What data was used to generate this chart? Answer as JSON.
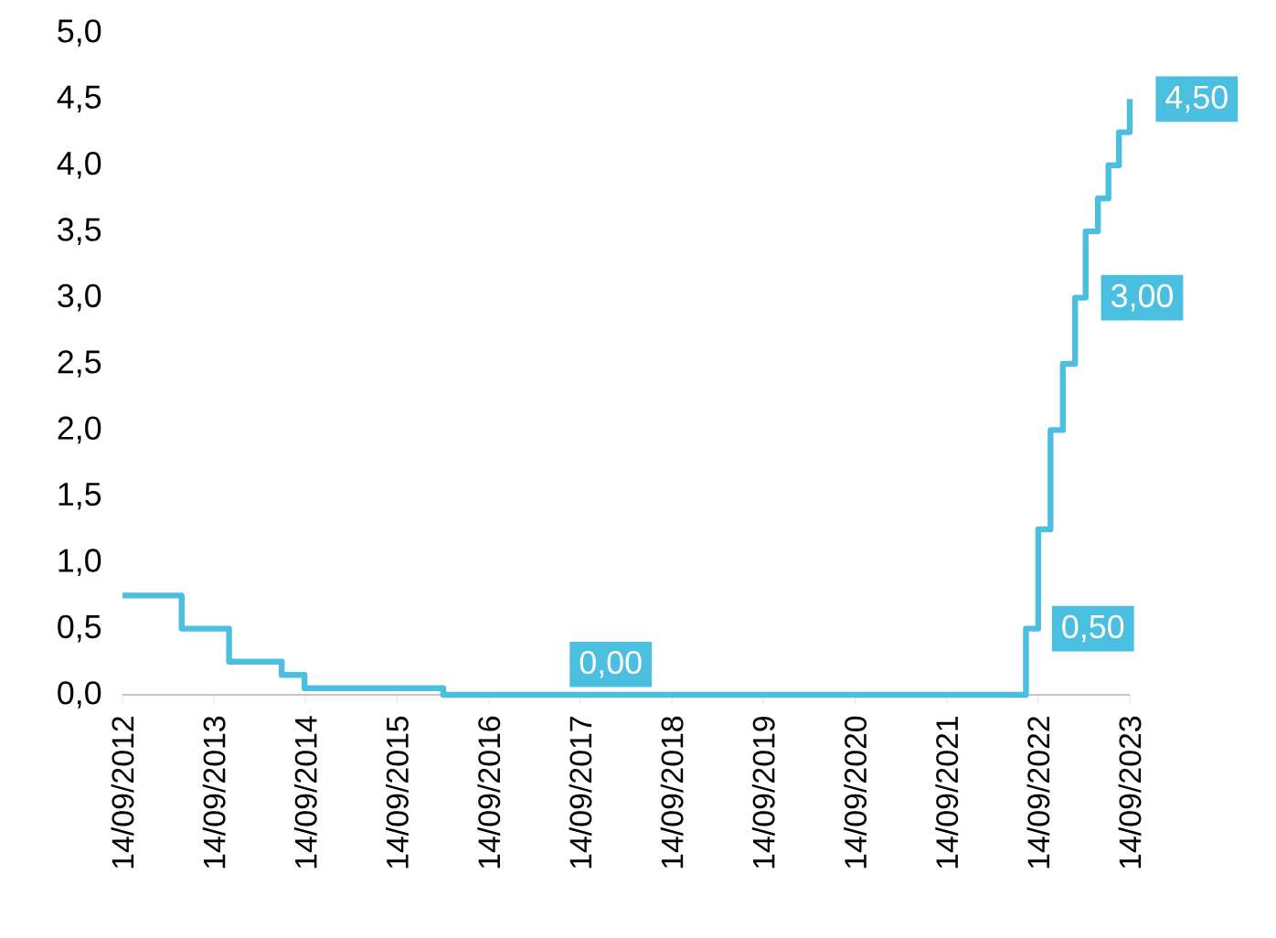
{
  "chart_data": {
    "type": "step",
    "color": "#4bbfdf",
    "x": [
      "2012-09-14",
      "2013-05-08",
      "2013-11-13",
      "2014-06-11",
      "2014-09-10",
      "2016-03-16",
      "2022-07-27",
      "2022-09-14",
      "2022-11-02",
      "2022-12-21",
      "2023-02-08",
      "2023-03-22",
      "2023-05-10",
      "2023-06-21",
      "2023-08-02",
      "2023-09-14"
    ],
    "values": [
      0.75,
      0.5,
      0.25,
      0.15,
      0.05,
      0.0,
      0.5,
      1.25,
      2.0,
      2.5,
      3.0,
      3.5,
      3.75,
      4.0,
      4.25,
      4.5
    ],
    "xlim": [
      "2012-09-14",
      "2023-09-14"
    ],
    "xticks": [
      {
        "value": "2012-09-14",
        "label": "14/09/2012"
      },
      {
        "value": "2013-09-14",
        "label": "14/09/2013"
      },
      {
        "value": "2014-09-14",
        "label": "14/09/2014"
      },
      {
        "value": "2015-09-14",
        "label": "14/09/2015"
      },
      {
        "value": "2016-09-14",
        "label": "14/09/2016"
      },
      {
        "value": "2017-09-14",
        "label": "14/09/2017"
      },
      {
        "value": "2018-09-14",
        "label": "14/09/2018"
      },
      {
        "value": "2019-09-14",
        "label": "14/09/2019"
      },
      {
        "value": "2020-09-14",
        "label": "14/09/2020"
      },
      {
        "value": "2021-09-14",
        "label": "14/09/2021"
      },
      {
        "value": "2022-09-14",
        "label": "14/09/2022"
      },
      {
        "value": "2023-09-14",
        "label": "14/09/2023"
      }
    ],
    "ylim": [
      0,
      5
    ],
    "yticks": [
      {
        "value": 0,
        "label": "0,0"
      },
      {
        "value": 0.5,
        "label": "0,5"
      },
      {
        "value": 1,
        "label": "1,0"
      },
      {
        "value": 1.5,
        "label": "1,5"
      },
      {
        "value": 2,
        "label": "2,0"
      },
      {
        "value": 2.5,
        "label": "2,5"
      },
      {
        "value": 3,
        "label": "3,0"
      },
      {
        "value": 3.5,
        "label": "3,5"
      },
      {
        "value": 4,
        "label": "4,0"
      },
      {
        "value": 4.5,
        "label": "4,5"
      },
      {
        "value": 5,
        "label": "5,0"
      }
    ],
    "annotations": [
      {
        "text": "0,00",
        "x": "2017-08-01",
        "y": 0
      },
      {
        "text": "0,50",
        "x": "2022-07-27",
        "y": 0.5
      },
      {
        "text": "3,00",
        "x": "2023-02-08",
        "y": 3
      },
      {
        "text": "4,50",
        "x": "2023-09-14",
        "y": 4.5
      }
    ],
    "grid": false,
    "line_style": "solid",
    "marker": "none"
  }
}
